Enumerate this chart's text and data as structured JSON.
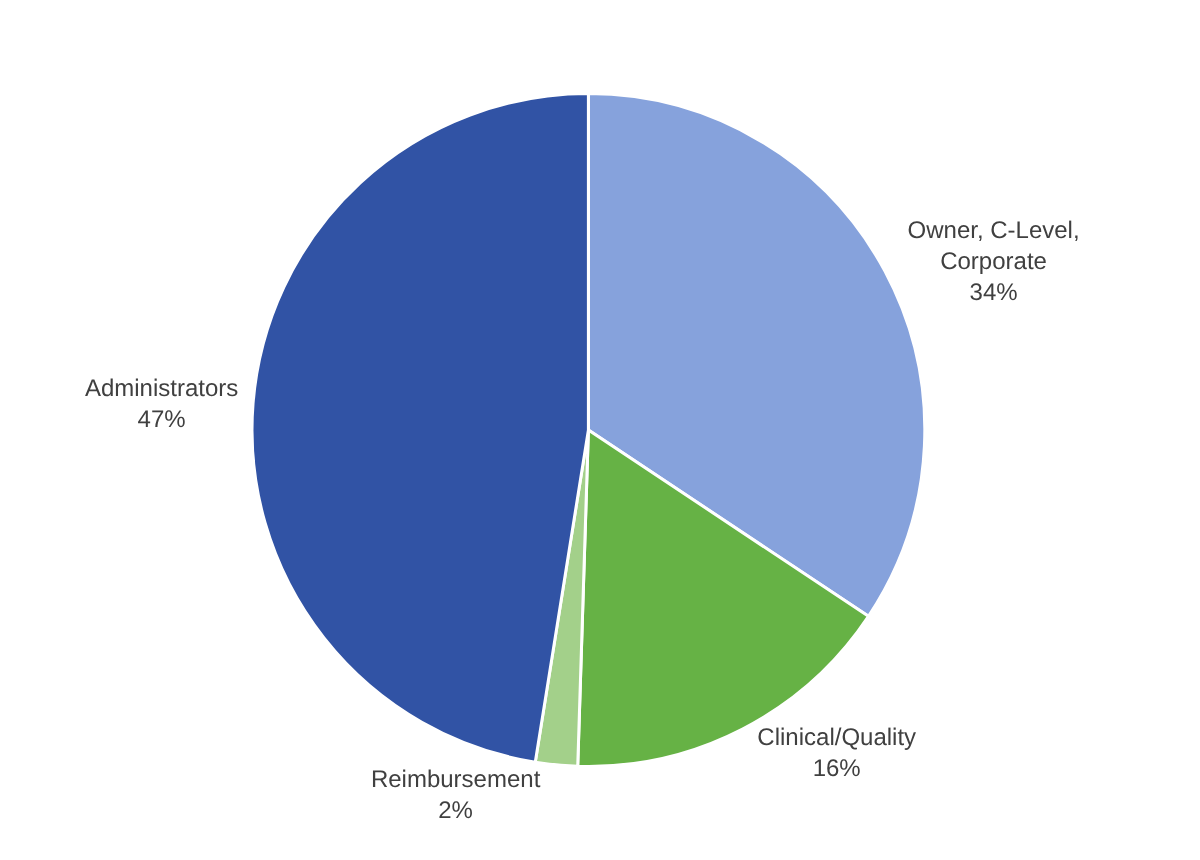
{
  "chart_data": {
    "type": "pie",
    "categories": [
      "Owner, C-Level, Corporate",
      "Clinical/Quality",
      "Reimbursement",
      "Administrators"
    ],
    "values": [
      34,
      16,
      2,
      47
    ],
    "value_labels": [
      "34%",
      "16%",
      "2%",
      "47%"
    ],
    "colors": [
      "#86a2dc",
      "#66b245",
      "#a3d08a",
      "#3153a5"
    ],
    "legend": false
  }
}
